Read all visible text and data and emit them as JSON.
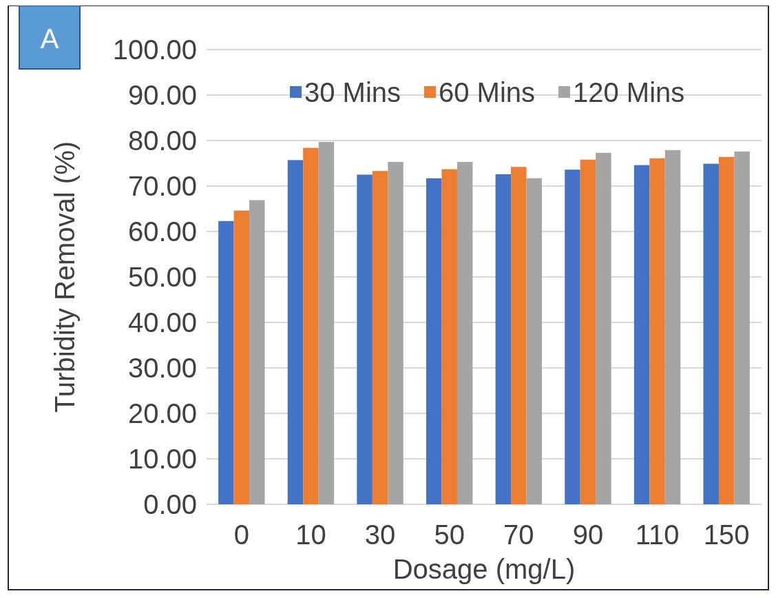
{
  "chart_data": {
    "type": "bar",
    "ylabel": "Turbidity Removal  (%)",
    "xlabel": "Dosage  (mg/L)",
    "annotations": [
      "A"
    ],
    "categories": [
      "0",
      "10",
      "30",
      "50",
      "70",
      "90",
      "110",
      "150"
    ],
    "series": [
      {
        "name": "30 Mins",
        "color": "#4472c4",
        "values": [
          62.3,
          75.7,
          72.5,
          71.7,
          72.6,
          73.6,
          74.6,
          74.9
        ]
      },
      {
        "name": "60 Mins",
        "color": "#ed7d31",
        "values": [
          64.6,
          78.4,
          73.3,
          73.7,
          74.2,
          75.8,
          76.1,
          76.4
        ]
      },
      {
        "name": "120 Mins",
        "color": "#a5a5a5",
        "values": [
          66.9,
          79.7,
          75.3,
          75.3,
          71.7,
          77.3,
          77.9,
          77.6
        ]
      }
    ],
    "ylim": [
      0,
      100
    ],
    "yticks": [
      {
        "value": 0,
        "label": "0.00"
      },
      {
        "value": 10,
        "label": "10.00"
      },
      {
        "value": 20,
        "label": "20.00"
      },
      {
        "value": 30,
        "label": "30.00"
      },
      {
        "value": 40,
        "label": "40.00"
      },
      {
        "value": 50,
        "label": "50.00"
      },
      {
        "value": 60,
        "label": "60.00"
      },
      {
        "value": 70,
        "label": "70.00"
      },
      {
        "value": 80,
        "label": "80.00"
      },
      {
        "value": 90,
        "label": "90.00"
      },
      {
        "value": 100,
        "label": "100.00"
      }
    ],
    "grid": "y",
    "legend": "top"
  }
}
